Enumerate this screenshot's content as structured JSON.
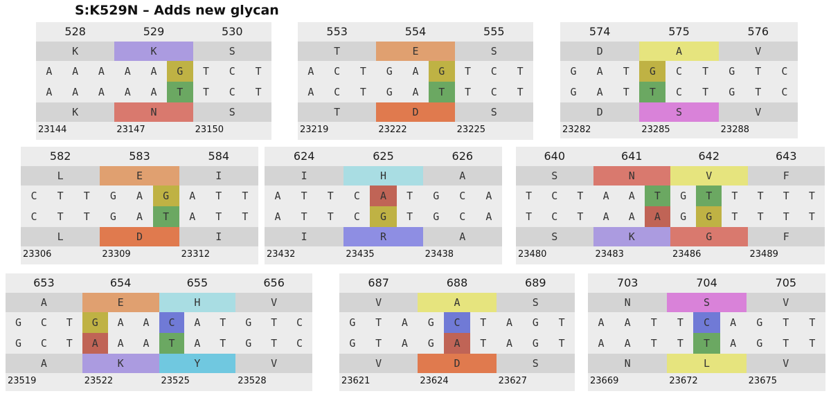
{
  "title": "S:K529N – Adds new glycan",
  "colors": {
    "panel": "#ececec",
    "grey_band": "#d4d4d4",
    "aa": {
      "K": "#ab9be0",
      "N": "#d9796e",
      "E": "#e0a070",
      "D": "#e07a4e",
      "A": "#e6e47e",
      "S": "#d982d9",
      "H": "#a9dde3",
      "R": "#8e8ee3",
      "V": "#e6e47e",
      "G": "#d9796e",
      "L": "#e6e47e",
      "Y": "#70c8e0"
    },
    "nt": {
      "G": "#bfb244",
      "T": "#6ba862",
      "A": "#c06456",
      "C": "#707ad6"
    }
  },
  "panels": [
    {
      "codons": [
        "528",
        "529",
        "530"
      ],
      "ref_aa": [
        "K",
        "K",
        "S"
      ],
      "ref_nt": [
        "A",
        "A",
        "A",
        "A",
        "A",
        "G",
        "T",
        "C",
        "T"
      ],
      "alt_nt": [
        "A",
        "A",
        "A",
        "A",
        "A",
        "T",
        "T",
        "C",
        "T"
      ],
      "alt_aa": [
        "K",
        "N",
        "S"
      ],
      "ref_hl": [
        false,
        true,
        false
      ],
      "alt_hl": [
        false,
        true,
        false
      ],
      "nt_hl": [
        false,
        false,
        false,
        false,
        false,
        true,
        false,
        false,
        false
      ],
      "genome_pos": [
        "23144",
        "23147",
        "23150"
      ]
    },
    {
      "codons": [
        "553",
        "554",
        "555"
      ],
      "ref_aa": [
        "T",
        "E",
        "S"
      ],
      "ref_nt": [
        "A",
        "C",
        "T",
        "G",
        "A",
        "G",
        "T",
        "C",
        "T"
      ],
      "alt_nt": [
        "A",
        "C",
        "T",
        "G",
        "A",
        "T",
        "T",
        "C",
        "T"
      ],
      "alt_aa": [
        "T",
        "D",
        "S"
      ],
      "ref_hl": [
        false,
        true,
        false
      ],
      "alt_hl": [
        false,
        true,
        false
      ],
      "nt_hl": [
        false,
        false,
        false,
        false,
        false,
        true,
        false,
        false,
        false
      ],
      "genome_pos": [
        "23219",
        "23222",
        "23225"
      ]
    },
    {
      "codons": [
        "574",
        "575",
        "576"
      ],
      "ref_aa": [
        "D",
        "A",
        "V"
      ],
      "ref_nt": [
        "G",
        "A",
        "T",
        "G",
        "C",
        "T",
        "G",
        "T",
        "C"
      ],
      "alt_nt": [
        "G",
        "A",
        "T",
        "T",
        "C",
        "T",
        "G",
        "T",
        "C"
      ],
      "alt_aa": [
        "D",
        "S",
        "V"
      ],
      "ref_hl": [
        false,
        true,
        false
      ],
      "alt_hl": [
        false,
        true,
        false
      ],
      "nt_hl": [
        false,
        false,
        false,
        true,
        false,
        false,
        false,
        false,
        false
      ],
      "genome_pos": [
        "23282",
        "23285",
        "23288"
      ]
    },
    {
      "codons": [
        "582",
        "583",
        "584"
      ],
      "ref_aa": [
        "L",
        "E",
        "I"
      ],
      "ref_nt": [
        "C",
        "T",
        "T",
        "G",
        "A",
        "G",
        "A",
        "T",
        "T"
      ],
      "alt_nt": [
        "C",
        "T",
        "T",
        "G",
        "A",
        "T",
        "A",
        "T",
        "T"
      ],
      "alt_aa": [
        "L",
        "D",
        "I"
      ],
      "ref_hl": [
        false,
        true,
        false
      ],
      "alt_hl": [
        false,
        true,
        false
      ],
      "nt_hl": [
        false,
        false,
        false,
        false,
        false,
        true,
        false,
        false,
        false
      ],
      "genome_pos": [
        "23306",
        "23309",
        "23312"
      ]
    },
    {
      "codons": [
        "624",
        "625",
        "626"
      ],
      "ref_aa": [
        "I",
        "H",
        "A"
      ],
      "ref_nt": [
        "A",
        "T",
        "T",
        "C",
        "A",
        "T",
        "G",
        "C",
        "A"
      ],
      "alt_nt": [
        "A",
        "T",
        "T",
        "C",
        "G",
        "T",
        "G",
        "C",
        "A"
      ],
      "alt_aa": [
        "I",
        "R",
        "A"
      ],
      "ref_hl": [
        false,
        true,
        false
      ],
      "alt_hl": [
        false,
        true,
        false
      ],
      "nt_hl": [
        false,
        false,
        false,
        false,
        true,
        false,
        false,
        false,
        false
      ],
      "genome_pos": [
        "23432",
        "23435",
        "23438"
      ]
    },
    {
      "codons": [
        "640",
        "641",
        "642",
        "643"
      ],
      "ref_aa": [
        "S",
        "N",
        "V",
        "F"
      ],
      "ref_nt": [
        "T",
        "C",
        "T",
        "A",
        "A",
        "T",
        "G",
        "T",
        "T",
        "T",
        "T",
        "T"
      ],
      "alt_nt": [
        "T",
        "C",
        "T",
        "A",
        "A",
        "A",
        "G",
        "G",
        "T",
        "T",
        "T",
        "T"
      ],
      "alt_aa": [
        "S",
        "K",
        "G",
        "F"
      ],
      "ref_hl": [
        false,
        true,
        true,
        false
      ],
      "alt_hl": [
        false,
        true,
        true,
        false
      ],
      "nt_hl": [
        false,
        false,
        false,
        false,
        false,
        true,
        false,
        true,
        false,
        false,
        false,
        false
      ],
      "genome_pos": [
        "23480",
        "23483",
        "23486",
        "23489"
      ]
    },
    {
      "codons": [
        "653",
        "654",
        "655",
        "656"
      ],
      "ref_aa": [
        "A",
        "E",
        "H",
        "V"
      ],
      "ref_nt": [
        "G",
        "C",
        "T",
        "G",
        "A",
        "A",
        "C",
        "A",
        "T",
        "G",
        "T",
        "C"
      ],
      "alt_nt": [
        "G",
        "C",
        "T",
        "A",
        "A",
        "A",
        "T",
        "A",
        "T",
        "G",
        "T",
        "C"
      ],
      "alt_aa": [
        "A",
        "K",
        "Y",
        "V"
      ],
      "ref_hl": [
        false,
        true,
        true,
        false
      ],
      "alt_hl": [
        false,
        true,
        true,
        false
      ],
      "nt_hl": [
        false,
        false,
        false,
        true,
        false,
        false,
        true,
        false,
        false,
        false,
        false,
        false
      ],
      "genome_pos": [
        "23519",
        "23522",
        "23525",
        "23528"
      ]
    },
    {
      "codons": [
        "687",
        "688",
        "689"
      ],
      "ref_aa": [
        "V",
        "A",
        "S"
      ],
      "ref_nt": [
        "G",
        "T",
        "A",
        "G",
        "C",
        "T",
        "A",
        "G",
        "T"
      ],
      "alt_nt": [
        "G",
        "T",
        "A",
        "G",
        "A",
        "T",
        "A",
        "G",
        "T"
      ],
      "alt_aa": [
        "V",
        "D",
        "S"
      ],
      "ref_hl": [
        false,
        true,
        false
      ],
      "alt_hl": [
        false,
        true,
        false
      ],
      "nt_hl": [
        false,
        false,
        false,
        false,
        true,
        false,
        false,
        false,
        false
      ],
      "genome_pos": [
        "23621",
        "23624",
        "23627"
      ]
    },
    {
      "codons": [
        "703",
        "704",
        "705"
      ],
      "ref_aa": [
        "N",
        "S",
        "V"
      ],
      "ref_nt": [
        "A",
        "A",
        "T",
        "T",
        "C",
        "A",
        "G",
        "T",
        "T"
      ],
      "alt_nt": [
        "A",
        "A",
        "T",
        "T",
        "T",
        "A",
        "G",
        "T",
        "T"
      ],
      "alt_aa": [
        "N",
        "L",
        "V"
      ],
      "ref_hl": [
        false,
        true,
        false
      ],
      "alt_hl": [
        false,
        true,
        false
      ],
      "nt_hl": [
        false,
        false,
        false,
        false,
        true,
        false,
        false,
        false,
        false
      ],
      "genome_pos": [
        "23669",
        "23672",
        "23675"
      ]
    }
  ]
}
